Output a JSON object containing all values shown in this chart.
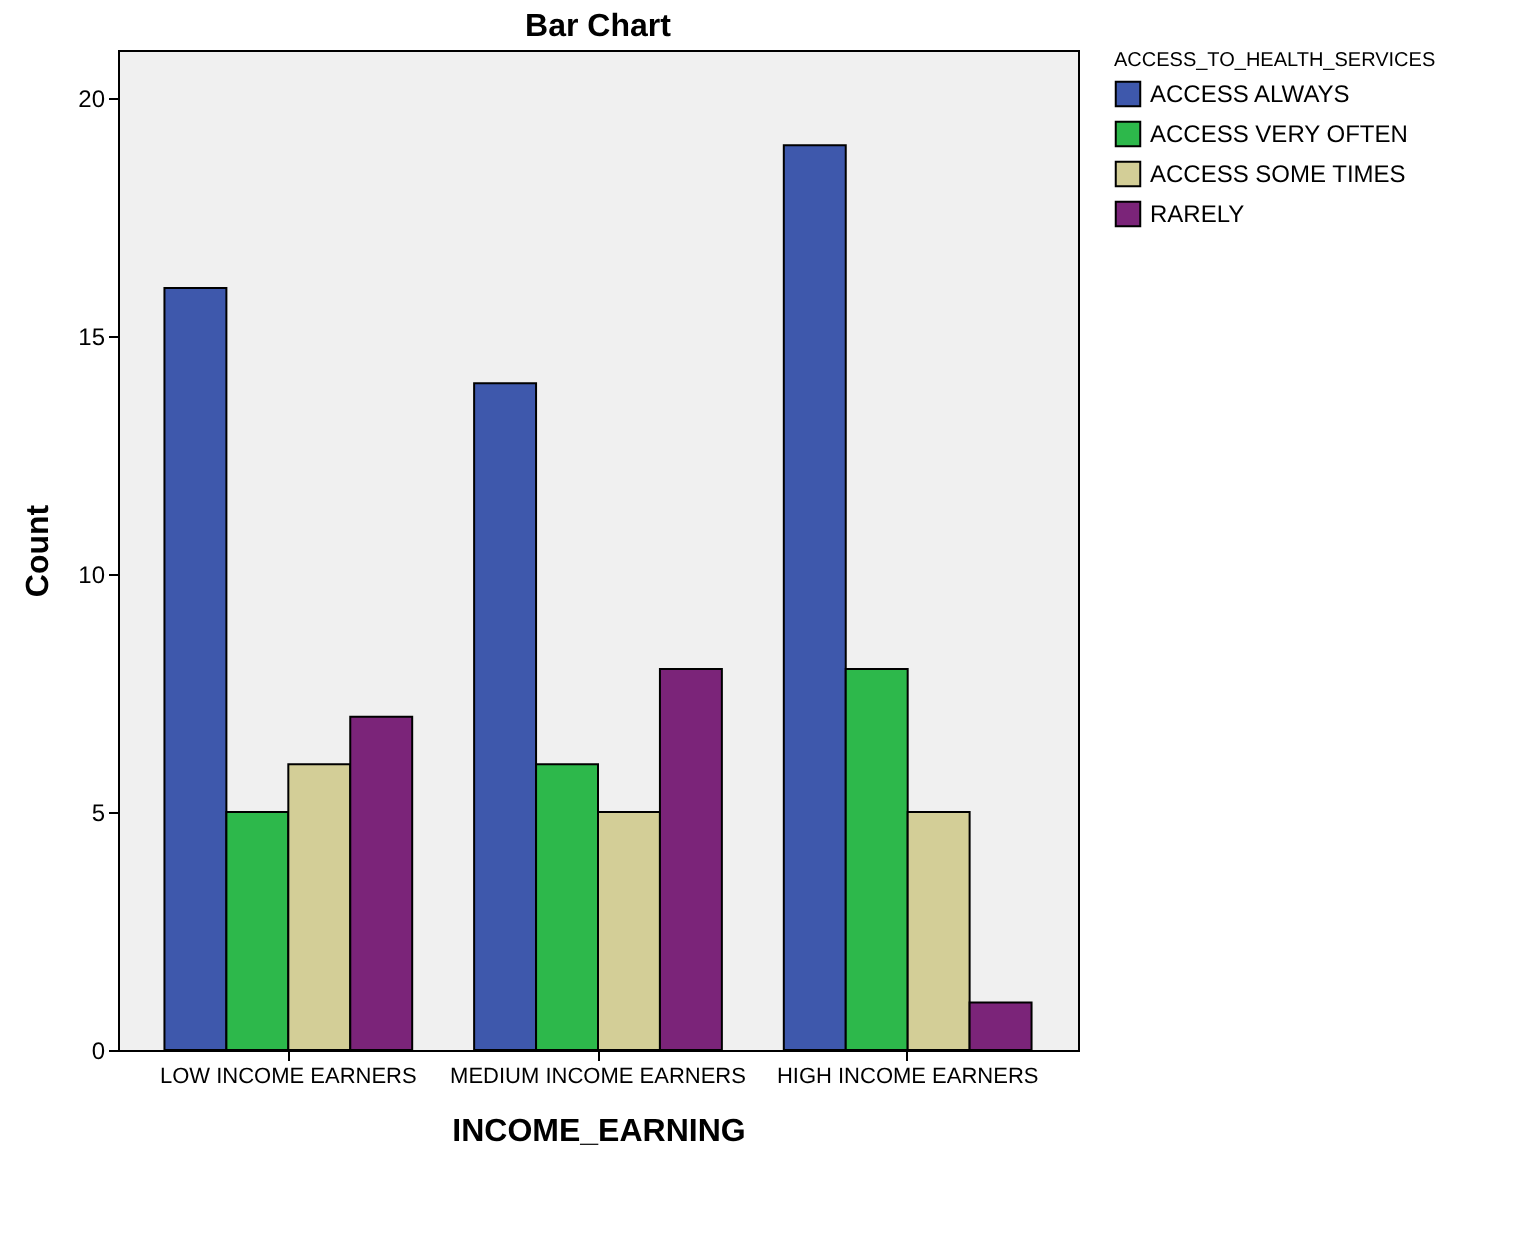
{
  "chart_data": {
    "type": "bar",
    "title": "Bar Chart",
    "xlabel": "INCOME_EARNING",
    "ylabel": "Count",
    "legend_title": "ACCESS_TO_HEALTH_SERVICES",
    "categories": [
      "LOW INCOME EARNERS",
      "MEDIUM INCOME EARNERS",
      "HIGH INCOME EARNERS"
    ],
    "series": [
      {
        "name": "ACCESS ALWAYS",
        "color": "#3e58ac",
        "values": [
          16,
          14,
          19
        ]
      },
      {
        "name": "ACCESS VERY OFTEN",
        "color": "#2db84b",
        "values": [
          5,
          6,
          8
        ]
      },
      {
        "name": "ACCESS SOME TIMES",
        "color": "#d3ce97",
        "values": [
          6,
          5,
          5
        ]
      },
      {
        "name": "RARELY",
        "color": "#7b2479",
        "values": [
          7,
          8,
          1
        ]
      }
    ],
    "ylim": [
      0,
      21
    ],
    "yticks": [
      0,
      5,
      10,
      15,
      20
    ],
    "grid": false,
    "legend": "top right"
  }
}
